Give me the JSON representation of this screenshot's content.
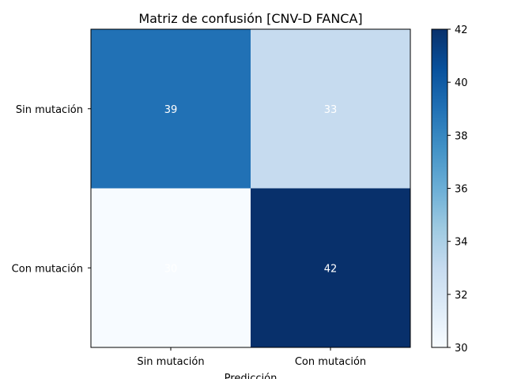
{
  "chart_data": {
    "type": "heatmap",
    "title": "Matriz de confusión [CNV-D FANCA]",
    "xlabel": "Predicción",
    "ylabel": "",
    "x_categories": [
      "Sin mutación",
      "Con mutación"
    ],
    "y_categories": [
      "Sin mutación",
      "Con mutación"
    ],
    "values": [
      [
        39,
        33
      ],
      [
        30,
        42
      ]
    ],
    "colormap": "Blues",
    "color_range": [
      30,
      42
    ],
    "colorbar_ticks": [
      "30",
      "32",
      "34",
      "36",
      "38",
      "40",
      "42"
    ],
    "cell_text_color": "#ffffff",
    "grid": false
  }
}
